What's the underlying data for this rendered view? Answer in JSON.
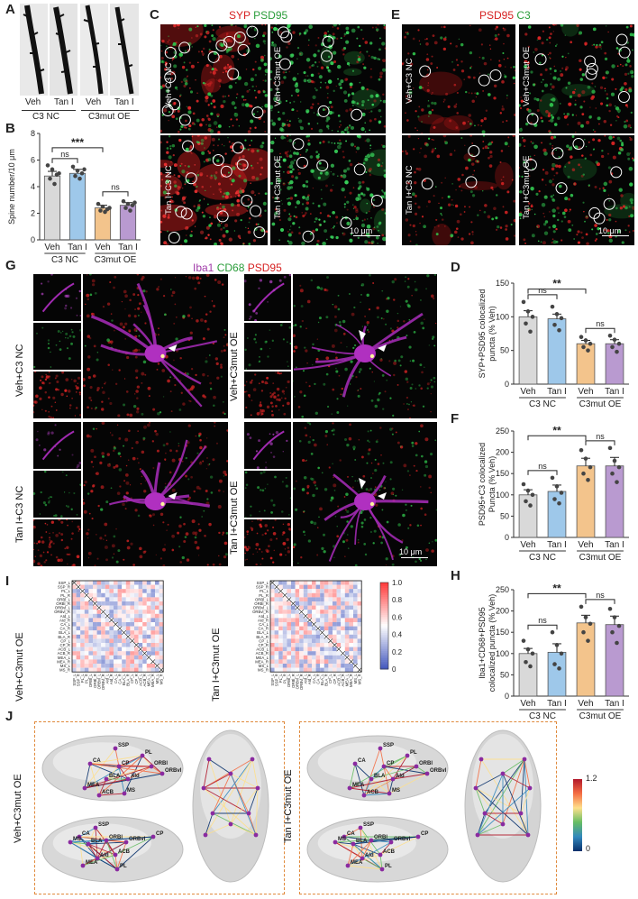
{
  "panels": {
    "A": {
      "letter": "A",
      "labels": [
        "Veh",
        "Tan I",
        "Veh",
        "Tan I"
      ],
      "groups": [
        "C3 NC",
        "C3mut OE"
      ]
    },
    "B": {
      "letter": "B"
    },
    "C": {
      "letter": "C",
      "title_red": "SYP",
      "title_green": "PSD95",
      "rows": [
        "Veh+C3 NC",
        "Tan I+C3 NC"
      ],
      "cols_right": [
        "Veh+C3mut OE",
        "Tan I+C3mut OE"
      ],
      "scale": "10 μm"
    },
    "E": {
      "letter": "E",
      "title_red": "PSD95",
      "title_green": "C3",
      "rows": [
        "Veh+C3 NC",
        "Tan I+C3 NC"
      ],
      "cols_right": [
        "Veh+C3mut OE",
        "Tan I+C3mut OE"
      ],
      "scale": "10 μm"
    },
    "G": {
      "letter": "G",
      "title_iba1": "Iba1",
      "title_cd68": "CD68",
      "title_psd95": "PSD95",
      "rows_left": [
        "Veh+C3 NC",
        "Tan I+C3 NC"
      ],
      "rows_right": [
        "Veh+C3mut OE",
        "Tan I+C3mut OE"
      ],
      "scale": "10 μm"
    },
    "D": {
      "letter": "D"
    },
    "F": {
      "letter": "F"
    },
    "H": {
      "letter": "H"
    },
    "I": {
      "letter": "I",
      "left_label": "Veh+C3mut OE",
      "right_label": "Tan I+C3mut OE",
      "regions": [
        "SSP_L",
        "SSP_R",
        "PL_L",
        "PL_R",
        "ORBl_L",
        "ORBl_R",
        "ORBvl_L",
        "ORBvl_R",
        "AId_L",
        "AId_R",
        "CA_L",
        "CA_R",
        "BLA_L",
        "BLA_R",
        "CP_L",
        "CP_R",
        "ACB_L",
        "ACB_R",
        "MEA_L",
        "MEA_R",
        "MS_L",
        "MS_R"
      ],
      "colorbar_ticks": [
        "1.0",
        "0.8",
        "0.6",
        "0.4",
        "0.2",
        "0"
      ]
    },
    "J": {
      "letter": "J",
      "left_label": "Veh+C3mut OE",
      "right_label": "Tan I+C3mut OE",
      "nodes": [
        "SSP",
        "PL",
        "CA",
        "CP",
        "ORBl",
        "ORBvl",
        "BLA",
        "AId",
        "MEA",
        "ACB",
        "MS"
      ],
      "colorbar_max": "1.2",
      "colorbar_min": "0"
    }
  },
  "chart_data": [
    {
      "id": "B",
      "type": "bar",
      "ylabel": "Spine number/10 μm",
      "ylim": [
        0,
        8
      ],
      "yticks": [
        0,
        2,
        4,
        6,
        8
      ],
      "categories": [
        "Veh",
        "Tan I",
        "Veh",
        "Tan I"
      ],
      "groups": [
        "C3 NC",
        "C3mut OE"
      ],
      "values": [
        4.8,
        5.0,
        2.4,
        2.6
      ],
      "errors": [
        0.35,
        0.3,
        0.2,
        0.2
      ],
      "points": [
        [
          5.6,
          5.3,
          4.9,
          4.6,
          4.2,
          5.0
        ],
        [
          5.5,
          5.2,
          5.0,
          4.8,
          4.6,
          5.3
        ],
        [
          2.7,
          2.5,
          2.3,
          2.2,
          2.1,
          2.4
        ],
        [
          2.9,
          2.7,
          2.6,
          2.4,
          2.2,
          2.8
        ]
      ],
      "colors": [
        "#d9d9d9",
        "#9ec8ea",
        "#f3c48c",
        "#b99ad0"
      ],
      "sig": [
        {
          "from": 0,
          "to": 1,
          "label": "ns"
        },
        {
          "from": 0,
          "to": 2,
          "label": "***"
        },
        {
          "from": 2,
          "to": 3,
          "label": "ns"
        }
      ]
    },
    {
      "id": "D",
      "type": "bar",
      "ylabel": "SYP+PSD95 colocalized puncta (% Veh)",
      "ylim": [
        0,
        150
      ],
      "yticks": [
        0,
        50,
        100,
        150
      ],
      "categories": [
        "Veh",
        "Tan I",
        "Veh",
        "Tan I"
      ],
      "groups": [
        "C3 NC",
        "C3mut OE"
      ],
      "values": [
        100,
        97,
        60,
        60
      ],
      "errors": [
        9,
        7,
        5,
        6
      ],
      "points": [
        [
          122,
          108,
          100,
          90,
          78
        ],
        [
          115,
          104,
          98,
          88,
          80
        ],
        [
          70,
          65,
          60,
          55,
          50
        ],
        [
          72,
          66,
          60,
          55,
          48
        ]
      ],
      "colors": [
        "#d9d9d9",
        "#9ec8ea",
        "#f3c48c",
        "#b99ad0"
      ],
      "sig": [
        {
          "from": 0,
          "to": 1,
          "label": "ns"
        },
        {
          "from": 0,
          "to": 2,
          "label": "**"
        },
        {
          "from": 2,
          "to": 3,
          "label": "ns"
        }
      ]
    },
    {
      "id": "F",
      "type": "bar",
      "ylabel": "PSD95+C3 colocalized Puncta (% Veh)",
      "ylim": [
        0,
        250
      ],
      "yticks": [
        0,
        50,
        100,
        150,
        200,
        250
      ],
      "categories": [
        "Veh",
        "Tan I",
        "Veh",
        "Tan I"
      ],
      "groups": [
        "C3 NC",
        "C3mut OE"
      ],
      "values": [
        100,
        108,
        168,
        168
      ],
      "errors": [
        12,
        15,
        18,
        20
      ],
      "points": [
        [
          125,
          110,
          100,
          85,
          75
        ],
        [
          140,
          120,
          105,
          90,
          80
        ],
        [
          205,
          185,
          165,
          150,
          135
        ],
        [
          210,
          180,
          165,
          150,
          130
        ]
      ],
      "colors": [
        "#d9d9d9",
        "#9ec8ea",
        "#f3c48c",
        "#b99ad0"
      ],
      "sig": [
        {
          "from": 0,
          "to": 1,
          "label": "ns"
        },
        {
          "from": 0,
          "to": 2,
          "label": "**"
        },
        {
          "from": 2,
          "to": 3,
          "label": "ns"
        }
      ]
    },
    {
      "id": "H",
      "type": "bar",
      "ylabel": "Iba1+CD68+PSD95 colocalized puncta (% Veh)",
      "ylim": [
        0,
        250
      ],
      "yticks": [
        0,
        50,
        100,
        150,
        200,
        250
      ],
      "categories": [
        "Veh",
        "Tan I",
        "Veh",
        "Tan I"
      ],
      "groups": [
        "C3 NC",
        "C3mut OE"
      ],
      "values": [
        100,
        103,
        172,
        168
      ],
      "errors": [
        12,
        20,
        18,
        20
      ],
      "points": [
        [
          130,
          110,
          100,
          80,
          70
        ],
        [
          150,
          120,
          100,
          75,
          65
        ],
        [
          210,
          185,
          170,
          150,
          130
        ],
        [
          205,
          185,
          165,
          150,
          125
        ]
      ],
      "colors": [
        "#d9d9d9",
        "#9ec8ea",
        "#f3c48c",
        "#b99ad0"
      ],
      "sig": [
        {
          "from": 0,
          "to": 1,
          "label": "ns"
        },
        {
          "from": 0,
          "to": 2,
          "label": "**"
        },
        {
          "from": 2,
          "to": 3,
          "label": "ns"
        }
      ]
    }
  ]
}
